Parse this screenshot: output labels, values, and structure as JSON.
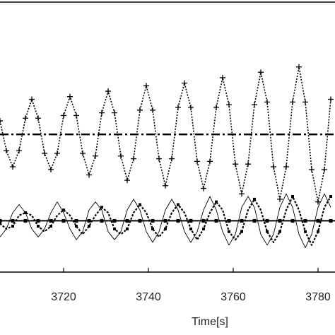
{
  "chart_data": {
    "type": "line",
    "x_label": "Time[s]",
    "x": [
      3705,
      3706.5,
      3708,
      3709.5,
      3711,
      3712.5,
      3714,
      3715.5,
      3717,
      3718.5,
      3720,
      3721.5,
      3723,
      3724.5,
      3726,
      3727.5,
      3729,
      3730.5,
      3732,
      3733.5,
      3735,
      3736.5,
      3738,
      3739.5,
      3741,
      3742.5,
      3744,
      3745.5,
      3747,
      3748.5,
      3750,
      3751.5,
      3753,
      3754.5,
      3756,
      3757.5,
      3759,
      3760.5,
      3762,
      3763.5,
      3765,
      3766.5,
      3768,
      3769.5,
      3771,
      3772.5,
      3774,
      3775.5,
      3777,
      3778.5,
      3780,
      3781.5,
      3783
    ],
    "series": [
      {
        "color": "#000000",
        "style": "dotted",
        "marker": "plus",
        "values": [
          56,
          45,
          39,
          45,
          57,
          64,
          57,
          44,
          38,
          44,
          58,
          65,
          58,
          44,
          36,
          43,
          59,
          67,
          59,
          43,
          34,
          42,
          60,
          69,
          60,
          42,
          32,
          42,
          61,
          70,
          61,
          41,
          31,
          41,
          61,
          72,
          62,
          40,
          29,
          40,
          62,
          74,
          63,
          39,
          27,
          39,
          63,
          76,
          63,
          38,
          26,
          38,
          64
        ]
      },
      {
        "color": "#000000",
        "style": "thin",
        "marker": "none",
        "values": [
          13,
          16,
          22,
          25,
          22,
          16,
          13,
          16,
          22,
          26,
          22,
          16,
          12,
          15,
          23,
          26,
          23,
          15,
          12,
          15,
          23,
          27,
          23,
          15,
          11,
          15,
          23,
          27,
          23,
          15,
          11,
          15,
          23,
          28,
          23,
          15,
          10,
          14,
          24,
          28,
          24,
          14,
          10,
          14,
          24,
          29,
          24,
          14,
          9,
          14,
          24,
          29,
          24
        ]
      },
      {
        "color": "#000000",
        "style": "dotted-bold",
        "marker": "square",
        "values": [
          18,
          16,
          17,
          21,
          22,
          21,
          17,
          15,
          17,
          21,
          23,
          21,
          17,
          14,
          17,
          21,
          24,
          22,
          16,
          14,
          16,
          22,
          25,
          22,
          16,
          13,
          16,
          22,
          25,
          22,
          16,
          12,
          16,
          22,
          26,
          23,
          15,
          12,
          15,
          23,
          27,
          23,
          15,
          11,
          15,
          23,
          28,
          23,
          15,
          10,
          15,
          24,
          28
        ]
      }
    ],
    "reference_lines": [
      {
        "value": 51,
        "style": "dashdot"
      },
      {
        "value": 19,
        "style": "solid-square"
      }
    ],
    "xlim": [
      3705,
      3784
    ],
    "xticks": [
      3720,
      3740,
      3760,
      3780
    ],
    "ylim": [
      0,
      100
    ]
  }
}
